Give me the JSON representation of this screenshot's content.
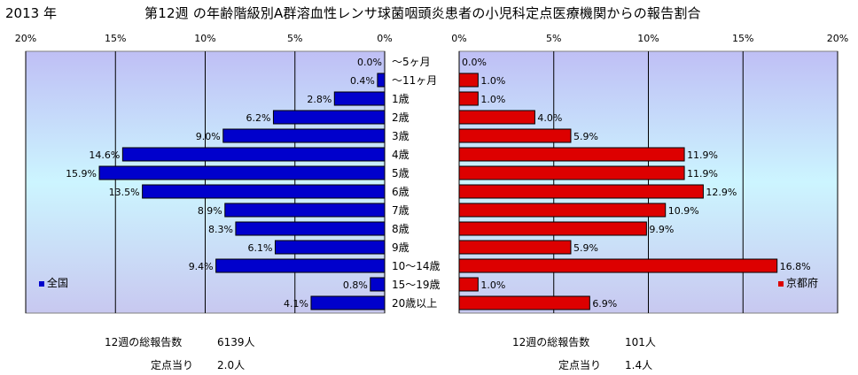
{
  "header": {
    "year": "2013 年",
    "title": "第12週 の年齢階級別A群溶血性レンサ球菌咽頭炎患者の小児科定点医療機関からの報告割合"
  },
  "chart_data": [
    {
      "type": "bar",
      "orientation": "horizontal",
      "direction": "right-to-left",
      "side": "left",
      "legend": "全国",
      "legend_placement": "bottom-left",
      "categories": [
        "〜5ヶ月",
        "〜11ヶ月",
        "1歳",
        "2歳",
        "3歳",
        "4歳",
        "5歳",
        "6歳",
        "7歳",
        "8歳",
        "9歳",
        "10〜14歳",
        "15〜19歳",
        "20歳以上"
      ],
      "values": [
        0.0,
        0.4,
        2.8,
        6.2,
        9.0,
        14.6,
        15.9,
        13.5,
        8.9,
        8.3,
        6.1,
        9.4,
        0.8,
        4.1
      ],
      "value_labels": [
        "0.0%",
        "0.4%",
        "2.8%",
        "6.2%",
        "9.0%",
        "14.6%",
        "15.9%",
        "13.5%",
        "8.9%",
        "8.3%",
        "6.1%",
        "9.4%",
        "0.8%",
        "4.1%"
      ],
      "ticks": [
        "20%",
        "15%",
        "10%",
        "5%",
        "0%"
      ],
      "xlim": [
        0,
        20
      ],
      "color": "#0000cc",
      "grid": "vertical"
    },
    {
      "type": "bar",
      "orientation": "horizontal",
      "direction": "left-to-right",
      "side": "right",
      "legend": "京都府",
      "legend_placement": "bottom-right",
      "categories": [
        "〜5ヶ月",
        "〜11ヶ月",
        "1歳",
        "2歳",
        "3歳",
        "4歳",
        "5歳",
        "6歳",
        "7歳",
        "8歳",
        "9歳",
        "10〜14歳",
        "15〜19歳",
        "20歳以上"
      ],
      "values": [
        0.0,
        1.0,
        1.0,
        4.0,
        5.9,
        11.9,
        11.9,
        12.9,
        10.9,
        9.9,
        5.9,
        16.8,
        1.0,
        6.9
      ],
      "value_labels": [
        "0.0%",
        "1.0%",
        "1.0%",
        "4.0%",
        "5.9%",
        "11.9%",
        "11.9%",
        "12.9%",
        "10.9%",
        "9.9%",
        "5.9%",
        "16.8%",
        "1.0%",
        "6.9%"
      ],
      "ticks": [
        "0%",
        "5%",
        "10%",
        "15%",
        "20%"
      ],
      "xlim": [
        0,
        20
      ],
      "color": "#dd0000",
      "grid": "vertical"
    }
  ],
  "footer": {
    "left": {
      "total_label": "12週の総報告数",
      "total_value": "6139人",
      "per_label": "定点当り",
      "per_value": "2.0人"
    },
    "right": {
      "total_label": "12週の総報告数",
      "total_value": "101人",
      "per_label": "定点当り",
      "per_value": "1.4人"
    }
  },
  "colors": {
    "plot_bg_top": "#bfbff5",
    "plot_bg_mid": "#ccf5ff",
    "plot_bg_bottom": "#c8c8f0",
    "grid": "#000000"
  }
}
